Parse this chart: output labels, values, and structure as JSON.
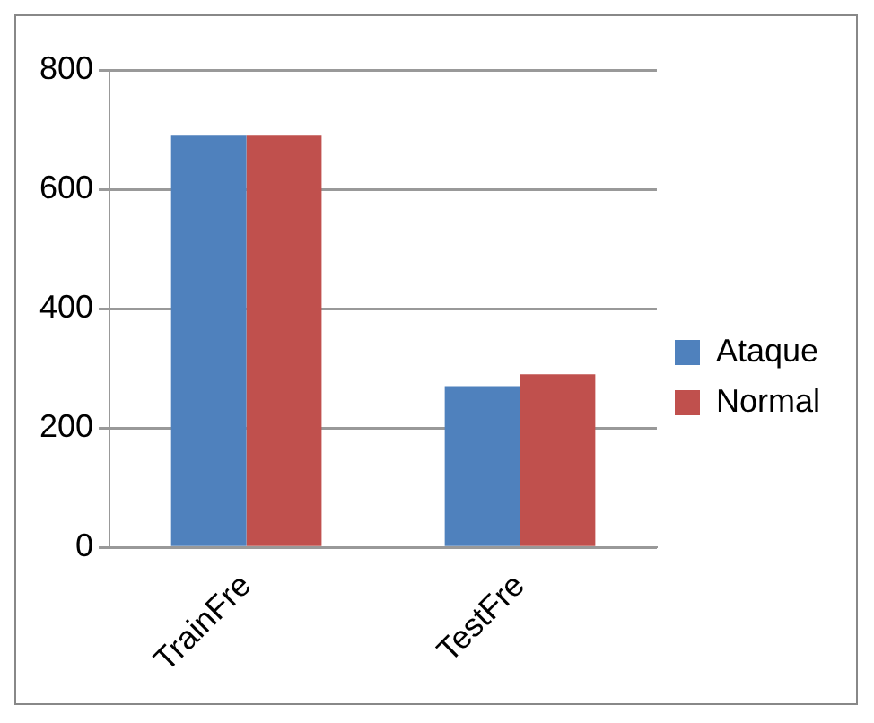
{
  "chart_data": {
    "type": "bar",
    "categories": [
      "TrainFre",
      "TestFre"
    ],
    "series": [
      {
        "name": "Ataque",
        "color": "#4f81bd",
        "values": [
          690,
          270
        ]
      },
      {
        "name": "Normal",
        "color": "#c0504d",
        "values": [
          690,
          290
        ]
      }
    ],
    "ylim": [
      0,
      800
    ],
    "yticks": [
      0,
      200,
      400,
      600,
      800
    ],
    "grid": "y",
    "legend": "right"
  }
}
